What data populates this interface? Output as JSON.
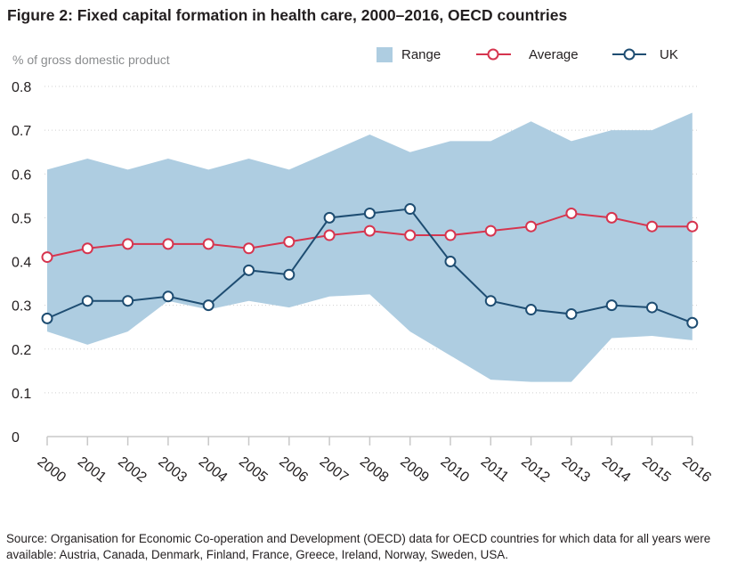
{
  "title": "Figure 2: Fixed capital formation in health care, 2000–2016, OECD countries",
  "source": "Source: Organisation for Economic Co-operation and Development (OECD) data for OECD countries for which data for all years were available: Austria, Canada, Denmark, Finland, France, Greece, Ireland, Norway, Sweden, USA.",
  "colors": {
    "range": "#aecde1",
    "average": "#d6354f",
    "uk": "#1e4d72",
    "axis": "#c8c8c8",
    "grid": "#d0d0d0"
  },
  "chart_data": {
    "type": "line",
    "ylabel": "% of gross domestic product",
    "ylim": [
      0,
      0.8
    ],
    "yticks": [
      "0",
      "0.1",
      "0.2",
      "0.3",
      "0.4",
      "0.5",
      "0.6",
      "0.7",
      "0.8"
    ],
    "x": [
      "2000",
      "2001",
      "2002",
      "2003",
      "2004",
      "2005",
      "2006",
      "2007",
      "2008",
      "2009",
      "2010",
      "2011",
      "2012",
      "2013",
      "2014",
      "2015",
      "2016"
    ],
    "grid": "horizontal dotted",
    "legend": {
      "placement": "top-right",
      "entries": [
        "Range",
        "Average",
        "UK"
      ]
    },
    "range": {
      "name": "Range",
      "upper": [
        0.61,
        0.635,
        0.61,
        0.635,
        0.61,
        0.635,
        0.61,
        0.65,
        0.69,
        0.65,
        0.675,
        0.675,
        0.72,
        0.675,
        0.7,
        0.7,
        0.74
      ],
      "lower": [
        0.24,
        0.21,
        0.24,
        0.31,
        0.29,
        0.31,
        0.295,
        0.32,
        0.325,
        0.24,
        0.185,
        0.13,
        0.125,
        0.125,
        0.225,
        0.23,
        0.22
      ]
    },
    "series": [
      {
        "name": "Average",
        "values": [
          0.41,
          0.43,
          0.44,
          0.44,
          0.44,
          0.43,
          0.445,
          0.46,
          0.47,
          0.46,
          0.46,
          0.47,
          0.48,
          0.51,
          0.5,
          0.48,
          0.48
        ]
      },
      {
        "name": "UK",
        "values": [
          0.27,
          0.31,
          0.31,
          0.32,
          0.3,
          0.38,
          0.37,
          0.5,
          0.51,
          0.52,
          0.4,
          0.31,
          0.29,
          0.28,
          0.3,
          0.295,
          0.26
        ]
      }
    ]
  }
}
